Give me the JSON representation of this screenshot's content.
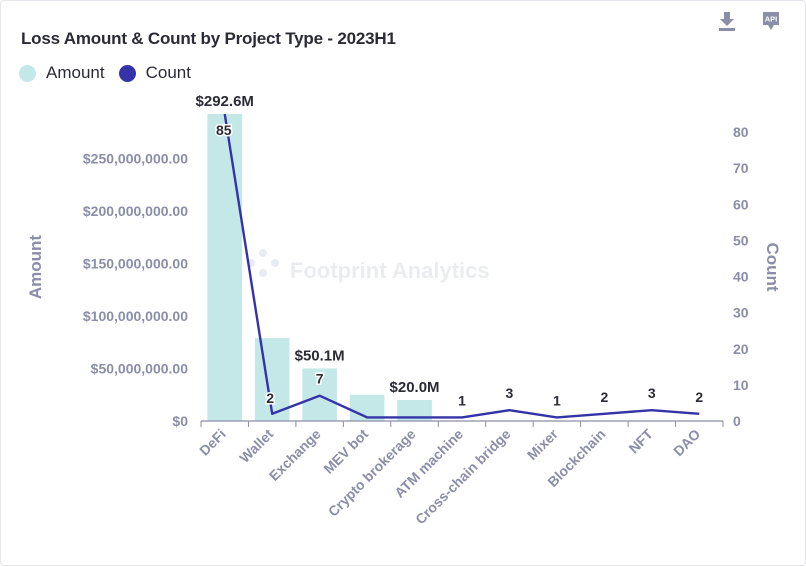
{
  "header": {
    "title": "Loss Amount & Count by Project Type - 2023H1",
    "download_icon": "download-icon",
    "api_icon": "api-icon",
    "api_label": "API"
  },
  "watermark": "Footprint Analytics",
  "colors": {
    "amount": "#c4e8e8",
    "count": "#3434a8",
    "axis_text": "#8a8ea8",
    "label_text": "#2b2b36"
  },
  "chart_data": {
    "type": "bar",
    "title": "Loss Amount & Count by Project Type - 2023H1",
    "legend_position": "top-left",
    "grid": false,
    "categories": [
      "DeFi",
      "Wallet",
      "Exchange",
      "MEV bot",
      "Crypto brokerage",
      "ATM machine",
      "Cross-chain bridge",
      "Mixer",
      "Blockchain",
      "NFT",
      "DAO"
    ],
    "series": [
      {
        "name": "Amount",
        "type": "bar",
        "axis": "left",
        "values": [
          292600000,
          79000000,
          50100000,
          25000000,
          20000000,
          0,
          0,
          0,
          0,
          0,
          0
        ],
        "data_labels": [
          "$292.6M",
          "",
          "$50.1M",
          "",
          "$20.0M",
          "",
          "",
          "",
          "",
          "",
          ""
        ]
      },
      {
        "name": "Count",
        "type": "line",
        "axis": "right",
        "values": [
          85,
          2,
          7,
          1,
          1,
          1,
          3,
          1,
          2,
          3,
          2
        ],
        "data_labels": [
          "85",
          "2",
          "7",
          "",
          "",
          "1",
          "3",
          "1",
          "2",
          "3",
          "2"
        ]
      }
    ],
    "ylabel": "Amount",
    "ylim": [
      0,
      292600000
    ],
    "yticks": [
      0,
      50000000,
      100000000,
      150000000,
      200000000,
      250000000
    ],
    "ytick_labels": [
      "$0",
      "$50,000,000.00",
      "$100,000,000.00",
      "$150,000,000.00",
      "$200,000,000.00",
      "$250,000,000.00"
    ],
    "y2label": "Count",
    "y2lim": [
      0,
      85
    ],
    "y2ticks": [
      0,
      10,
      20,
      30,
      40,
      50,
      60,
      70,
      80
    ],
    "y2tick_labels": [
      "0",
      "10",
      "20",
      "30",
      "40",
      "50",
      "60",
      "70",
      "80"
    ]
  }
}
